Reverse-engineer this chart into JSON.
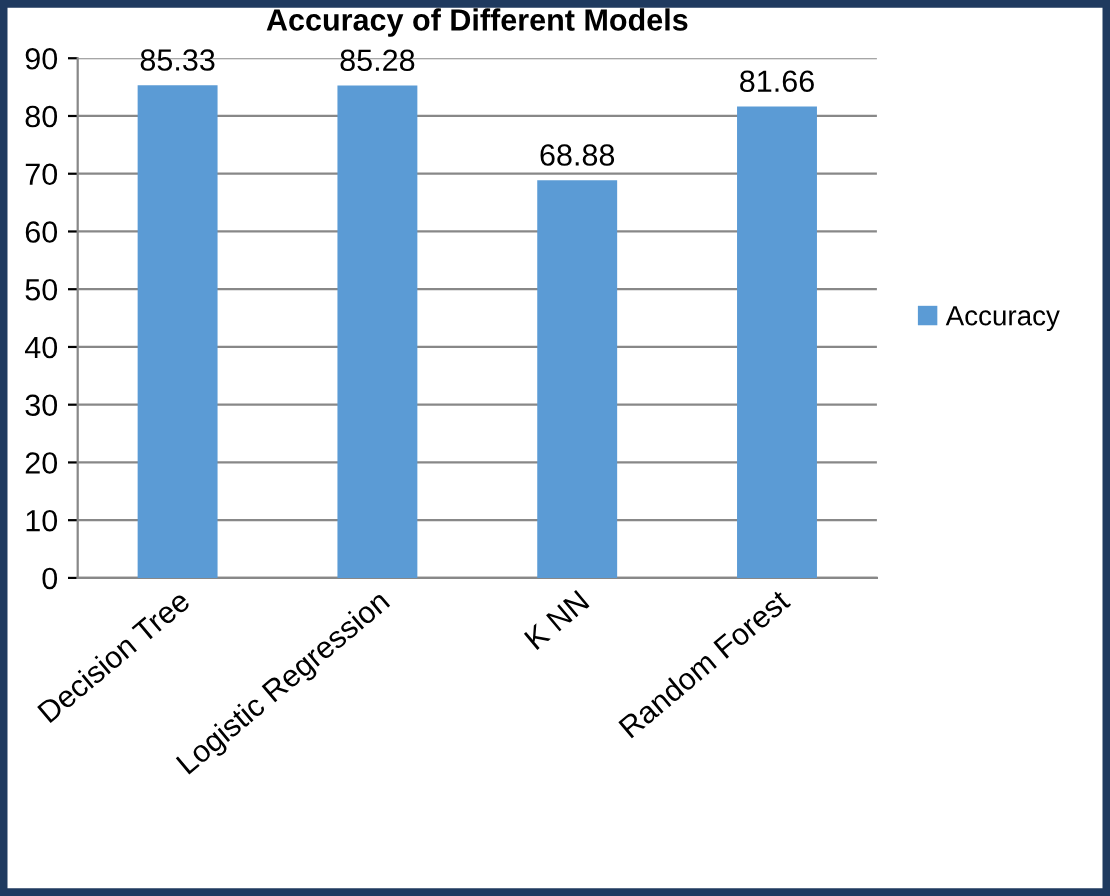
{
  "chart_data": {
    "type": "bar",
    "title": "Accuracy of Different Models",
    "categories": [
      "Decision Tree",
      "Logistic Regression",
      "K NN",
      "Random Forest"
    ],
    "series": [
      {
        "name": "Accuracy",
        "color": "#5b9bd5",
        "values": [
          85.33,
          85.28,
          68.88,
          81.66
        ]
      }
    ],
    "ylim": [
      0,
      90
    ],
    "yticks": [
      0,
      10,
      20,
      30,
      40,
      50,
      60,
      70,
      80,
      90
    ],
    "grid": "y",
    "legend": "right",
    "data_labels": true
  }
}
